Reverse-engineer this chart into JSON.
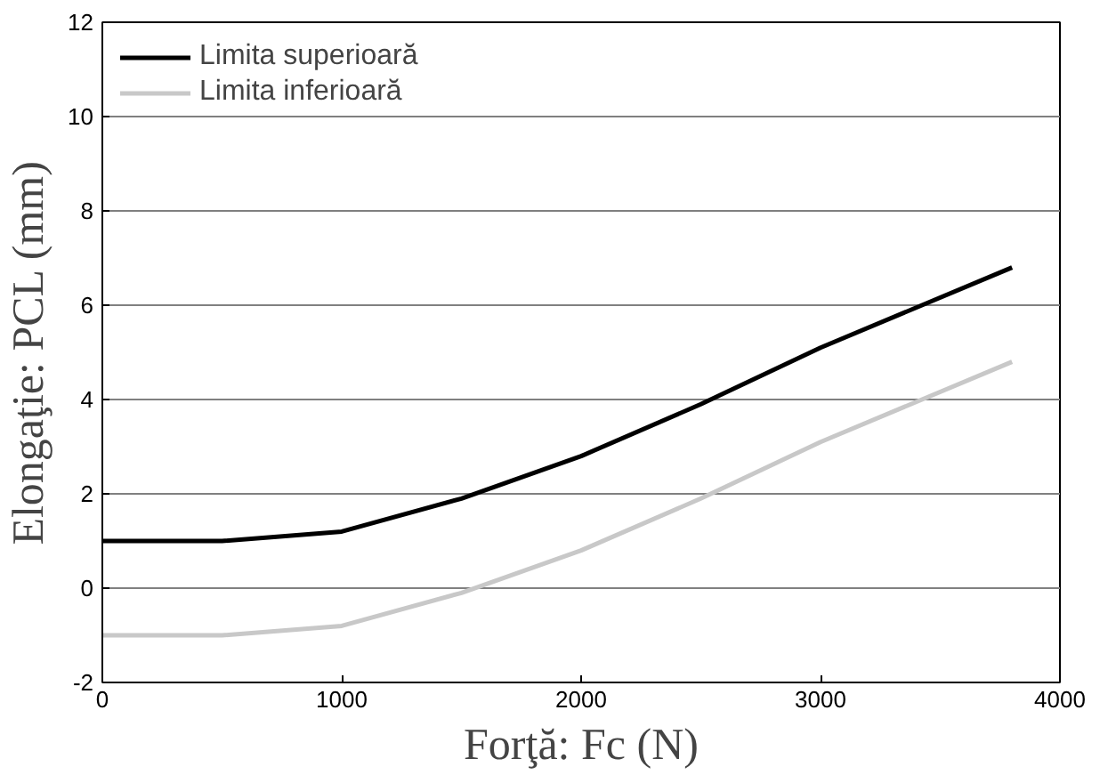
{
  "chart_data": {
    "type": "line",
    "xlabel": "Forţă: Fc (N)",
    "ylabel": "Elongaţie: PCL (mm)",
    "x": [
      0,
      500,
      1000,
      1500,
      2000,
      2500,
      3000,
      3800
    ],
    "series": [
      {
        "name": "Limita superioară",
        "color": "#000000",
        "values": [
          1.0,
          1.0,
          1.2,
          1.9,
          2.8,
          3.9,
          5.1,
          6.8
        ]
      },
      {
        "name": "Limita inferioară",
        "color": "#c8c8c8",
        "values": [
          -1.0,
          -1.0,
          -0.8,
          -0.1,
          0.8,
          1.9,
          3.1,
          4.8
        ]
      }
    ],
    "xlim": [
      0,
      4000
    ],
    "xticks": [
      0,
      1000,
      2000,
      3000,
      4000
    ],
    "ylim": [
      -2,
      12
    ],
    "yticks": [
      -2,
      0,
      2,
      4,
      6,
      8,
      10,
      12
    ],
    "grid": "y",
    "legend": "top left",
    "line_style": "solid",
    "marker": "none"
  }
}
